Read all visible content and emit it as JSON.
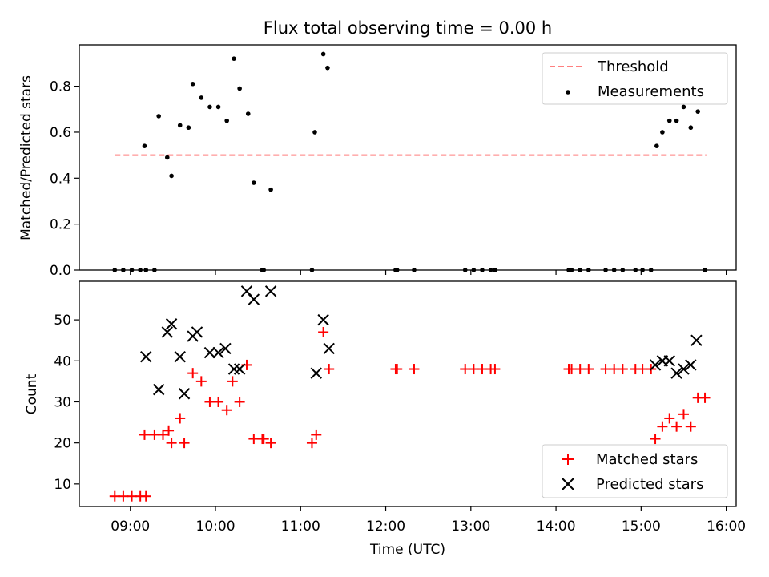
{
  "chart_data": [
    {
      "type": "scatter",
      "title": "Flux total observing time = 0.00 h",
      "ylabel": "Matched/Predicted stars",
      "xlabel": "",
      "ylim": [
        0,
        0.98
      ],
      "yticks": [
        "0.0",
        "0.2",
        "0.4",
        "0.6",
        "0.8"
      ],
      "ytick_values": [
        0,
        0.2,
        0.4,
        0.6,
        0.8
      ],
      "grid": false,
      "legend_position": "top-right",
      "threshold": {
        "name": "Threshold",
        "value": 0.5,
        "x_range": [
          "08:49",
          "15:46"
        ],
        "color": "#ff7f7f",
        "style": "dashed"
      },
      "series": [
        {
          "name": "Measurements",
          "color": "#000000",
          "points": [
            [
              "08:49",
              0
            ],
            [
              "08:55",
              0
            ],
            [
              "09:01",
              0
            ],
            [
              "09:07",
              0
            ],
            [
              "09:11",
              0
            ],
            [
              "09:11",
              0
            ],
            [
              "09:17",
              0
            ],
            [
              "09:10",
              0.54
            ],
            [
              "09:20",
              0.67
            ],
            [
              "09:26",
              0.49
            ],
            [
              "09:29",
              0.41
            ],
            [
              "09:35",
              0.63
            ],
            [
              "09:41",
              0.62
            ],
            [
              "09:44",
              0.81
            ],
            [
              "09:50",
              0.75
            ],
            [
              "09:56",
              0.71
            ],
            [
              "10:02",
              0.71
            ],
            [
              "10:08",
              0.65
            ],
            [
              "10:13",
              0.92
            ],
            [
              "10:17",
              0.79
            ],
            [
              "10:23",
              0.68
            ],
            [
              "10:27",
              0.38
            ],
            [
              "10:39",
              0.35
            ],
            [
              "11:10",
              0.6
            ],
            [
              "11:16",
              0.94
            ],
            [
              "11:19",
              0.88
            ],
            [
              "10:33",
              0
            ],
            [
              "10:33",
              0
            ],
            [
              "10:34",
              0
            ],
            [
              "11:08",
              0
            ],
            [
              "12:07",
              0
            ],
            [
              "12:07",
              0
            ],
            [
              "12:08",
              0
            ],
            [
              "12:20",
              0
            ],
            [
              "12:56",
              0
            ],
            [
              "13:02",
              0
            ],
            [
              "13:08",
              0
            ],
            [
              "13:14",
              0
            ],
            [
              "13:17",
              0
            ],
            [
              "14:09",
              0
            ],
            [
              "14:11",
              0
            ],
            [
              "14:17",
              0
            ],
            [
              "14:23",
              0
            ],
            [
              "14:35",
              0
            ],
            [
              "14:41",
              0
            ],
            [
              "14:47",
              0
            ],
            [
              "14:56",
              0
            ],
            [
              "15:01",
              0
            ],
            [
              "15:07",
              0
            ],
            [
              "15:45",
              0
            ],
            [
              "15:11",
              0.54
            ],
            [
              "15:15",
              0.6
            ],
            [
              "15:20",
              0.65
            ],
            [
              "15:25",
              0.65
            ],
            [
              "15:30",
              0.71
            ],
            [
              "15:35",
              0.62
            ],
            [
              "15:40",
              0.69
            ]
          ]
        }
      ],
      "legend": [
        "Threshold",
        "Measurements"
      ]
    },
    {
      "type": "scatter",
      "title": "",
      "ylabel": "Count",
      "xlabel": "Time (UTC)",
      "xlim": [
        "08:24",
        "16:07"
      ],
      "xticks": [
        "09:00",
        "10:00",
        "11:00",
        "12:00",
        "13:00",
        "14:00",
        "15:00",
        "16:00"
      ],
      "ylim": [
        4.5,
        59.4
      ],
      "yticks": [
        "10",
        "20",
        "30",
        "40",
        "50"
      ],
      "ytick_values": [
        10,
        20,
        30,
        40,
        50
      ],
      "grid": false,
      "legend_position": "bottom-right",
      "series": [
        {
          "name": "Matched stars",
          "marker": "+",
          "color": "#ff0000",
          "points": [
            [
              "08:49",
              7
            ],
            [
              "08:55",
              7
            ],
            [
              "09:01",
              7
            ],
            [
              "09:07",
              7
            ],
            [
              "09:11",
              7
            ],
            [
              "09:10",
              22
            ],
            [
              "09:17",
              22
            ],
            [
              "09:23",
              22
            ],
            [
              "09:27",
              23
            ],
            [
              "09:29",
              20
            ],
            [
              "09:35",
              26
            ],
            [
              "09:38",
              20
            ],
            [
              "09:44",
              37
            ],
            [
              "09:50",
              35
            ],
            [
              "09:56",
              30
            ],
            [
              "10:02",
              30
            ],
            [
              "10:08",
              28
            ],
            [
              "10:12",
              35
            ],
            [
              "10:17",
              30
            ],
            [
              "10:22",
              39
            ],
            [
              "10:27",
              21
            ],
            [
              "10:33",
              21
            ],
            [
              "10:34",
              21
            ],
            [
              "10:39",
              20
            ],
            [
              "11:08",
              20
            ],
            [
              "11:11",
              22
            ],
            [
              "11:16",
              47
            ],
            [
              "11:20",
              38
            ],
            [
              "12:07",
              38
            ],
            [
              "12:08",
              38
            ],
            [
              "12:20",
              38
            ],
            [
              "12:56",
              38
            ],
            [
              "13:02",
              38
            ],
            [
              "13:08",
              38
            ],
            [
              "13:14",
              38
            ],
            [
              "13:17",
              38
            ],
            [
              "14:09",
              38
            ],
            [
              "14:11",
              38
            ],
            [
              "14:17",
              38
            ],
            [
              "14:23",
              38
            ],
            [
              "14:35",
              38
            ],
            [
              "14:41",
              38
            ],
            [
              "14:47",
              38
            ],
            [
              "14:56",
              38
            ],
            [
              "15:01",
              38
            ],
            [
              "15:07",
              38
            ],
            [
              "15:10",
              21
            ],
            [
              "15:15",
              24
            ],
            [
              "15:20",
              26
            ],
            [
              "15:25",
              24
            ],
            [
              "15:30",
              27
            ],
            [
              "15:35",
              24
            ],
            [
              "15:40",
              31
            ],
            [
              "15:45",
              31
            ]
          ]
        },
        {
          "name": "Predicted stars",
          "marker": "x",
          "color": "#000000",
          "points": [
            [
              "09:11",
              41
            ],
            [
              "09:20",
              33
            ],
            [
              "09:26",
              47
            ],
            [
              "09:29",
              49
            ],
            [
              "09:35",
              41
            ],
            [
              "09:38",
              32
            ],
            [
              "09:44",
              46
            ],
            [
              "09:47",
              47
            ],
            [
              "09:56",
              42
            ],
            [
              "10:02",
              42
            ],
            [
              "10:07",
              43
            ],
            [
              "10:13",
              38
            ],
            [
              "10:17",
              38
            ],
            [
              "10:22",
              57
            ],
            [
              "10:27",
              55
            ],
            [
              "10:39",
              57
            ],
            [
              "11:11",
              37
            ],
            [
              "11:16",
              50
            ],
            [
              "11:20",
              43
            ],
            [
              "15:10",
              39
            ],
            [
              "15:15",
              40
            ],
            [
              "15:20",
              40
            ],
            [
              "15:25",
              37
            ],
            [
              "15:30",
              38
            ],
            [
              "15:35",
              39
            ],
            [
              "15:39",
              45
            ]
          ]
        }
      ],
      "legend": [
        "Matched stars",
        "Predicted stars"
      ]
    }
  ]
}
